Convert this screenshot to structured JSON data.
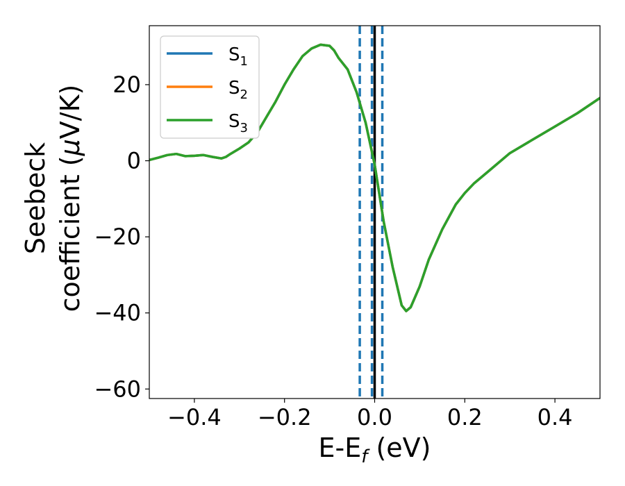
{
  "chart_data": {
    "type": "line",
    "xlabel": "E-E",
    "xlabel_sub": "f",
    "xlabel_unit": " (eV)",
    "ylabel_line1": "Seebeck",
    "ylabel_line2_prefix": "coefficient  (",
    "ylabel_mu": "μ",
    "ylabel_line2_suffix": "V/K)",
    "xlim": [
      -0.5,
      0.5
    ],
    "ylim": [
      -62.5,
      35.5
    ],
    "xticks": [
      -0.4,
      -0.2,
      0.0,
      0.2,
      0.4
    ],
    "xtick_labels": [
      "−0.4",
      "−0.2",
      "0.0",
      "0.2",
      "0.4"
    ],
    "yticks": [
      20,
      0,
      -20,
      -40,
      -60
    ],
    "ytick_labels": [
      "20",
      "0",
      "−20",
      "−40",
      "−60"
    ],
    "grid": false,
    "legend_position": "top-left",
    "vertical_lines": [
      {
        "x": -0.033,
        "style": "dashed",
        "color": "#1f77b4"
      },
      {
        "x": -0.006,
        "style": "dashed",
        "color": "#1f77b4"
      },
      {
        "x": 0.017,
        "style": "dashed",
        "color": "#1f77b4"
      },
      {
        "x": 0.0,
        "style": "solid",
        "color": "#000000"
      }
    ],
    "x": [
      -0.5,
      -0.48,
      -0.46,
      -0.44,
      -0.42,
      -0.4,
      -0.38,
      -0.36,
      -0.34,
      -0.33,
      -0.32,
      -0.3,
      -0.28,
      -0.26,
      -0.24,
      -0.22,
      -0.2,
      -0.18,
      -0.16,
      -0.14,
      -0.12,
      -0.1,
      -0.09,
      -0.08,
      -0.06,
      -0.04,
      -0.02,
      0.0,
      0.02,
      0.04,
      0.06,
      0.07,
      0.08,
      0.1,
      0.12,
      0.15,
      0.18,
      0.2,
      0.22,
      0.25,
      0.3,
      0.35,
      0.4,
      0.45,
      0.5
    ],
    "series": [
      {
        "name": "S",
        "sub": "1",
        "color": "#1f77b4",
        "values": [
          0.2,
          0.8,
          1.5,
          1.8,
          1.2,
          1.3,
          1.5,
          1.0,
          0.6,
          1.0,
          1.8,
          3.2,
          4.8,
          7.5,
          11.5,
          15.5,
          20.0,
          24.0,
          27.5,
          29.5,
          30.5,
          30.2,
          29.0,
          27.0,
          24.0,
          18.0,
          10.0,
          -1.0,
          -16.0,
          -28.0,
          -38.0,
          -39.5,
          -38.5,
          -33.0,
          -26.0,
          -18.0,
          -11.5,
          -8.5,
          -6.0,
          -3.0,
          2.0,
          5.5,
          9.0,
          12.5,
          16.5
        ]
      },
      {
        "name": "S",
        "sub": "2",
        "color": "#ff7f0e",
        "values": [
          0.2,
          0.8,
          1.5,
          1.8,
          1.2,
          1.3,
          1.5,
          1.0,
          0.6,
          1.0,
          1.8,
          3.2,
          4.8,
          7.5,
          11.5,
          15.5,
          20.0,
          24.0,
          27.5,
          29.5,
          30.5,
          30.2,
          29.0,
          27.0,
          24.0,
          18.0,
          10.0,
          -1.0,
          -16.0,
          -28.0,
          -38.0,
          -39.5,
          -38.5,
          -33.0,
          -26.0,
          -18.0,
          -11.5,
          -8.5,
          -6.0,
          -3.0,
          2.0,
          5.5,
          9.0,
          12.5,
          16.5
        ]
      },
      {
        "name": "S",
        "sub": "3",
        "color": "#2ca02c",
        "values": [
          0.2,
          0.8,
          1.5,
          1.8,
          1.2,
          1.3,
          1.5,
          1.0,
          0.6,
          1.0,
          1.8,
          3.2,
          4.8,
          7.5,
          11.5,
          15.5,
          20.0,
          24.0,
          27.5,
          29.5,
          30.5,
          30.2,
          29.0,
          27.0,
          24.0,
          18.0,
          10.0,
          -1.0,
          -16.0,
          -28.0,
          -38.0,
          -39.5,
          -38.5,
          -33.0,
          -26.0,
          -18.0,
          -11.5,
          -8.5,
          -6.0,
          -3.0,
          2.0,
          5.5,
          9.0,
          12.5,
          16.5
        ]
      }
    ]
  }
}
